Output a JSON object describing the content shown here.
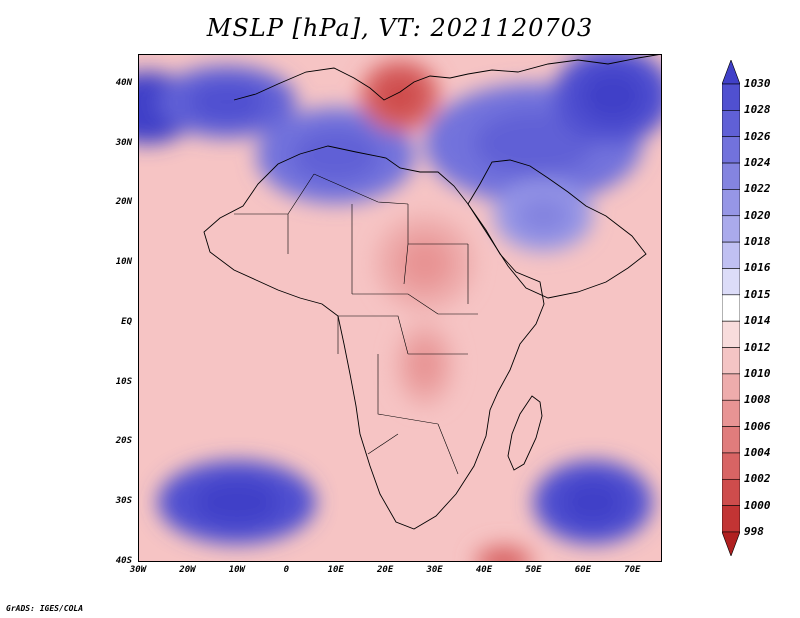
{
  "title": "MSLP [hPa], VT: 2021120703",
  "credit": "GrADS: IGES/COLA",
  "map": {
    "lon_range": [
      -30,
      76
    ],
    "lat_range": [
      -40,
      45
    ],
    "y_ticks": [
      {
        "lat": 40,
        "label": "40N"
      },
      {
        "lat": 30,
        "label": "30N"
      },
      {
        "lat": 20,
        "label": "20N"
      },
      {
        "lat": 10,
        "label": "10N"
      },
      {
        "lat": 0,
        "label": "EQ"
      },
      {
        "lat": -10,
        "label": "10S"
      },
      {
        "lat": -20,
        "label": "20S"
      },
      {
        "lat": -30,
        "label": "30S"
      },
      {
        "lat": -40,
        "label": "40S"
      }
    ],
    "x_ticks": [
      {
        "lon": -30,
        "label": "30W"
      },
      {
        "lon": -20,
        "label": "20W"
      },
      {
        "lon": -10,
        "label": "10W"
      },
      {
        "lon": 0,
        "label": "0"
      },
      {
        "lon": 10,
        "label": "10E"
      },
      {
        "lon": 20,
        "label": "20E"
      },
      {
        "lon": 30,
        "label": "30E"
      },
      {
        "lon": 40,
        "label": "40E"
      },
      {
        "lon": 50,
        "label": "50E"
      },
      {
        "lon": 60,
        "label": "60E"
      },
      {
        "lon": 70,
        "label": "70E"
      }
    ],
    "pressure_features": [
      {
        "kind": "high",
        "lon": -28,
        "lat": 36,
        "hPa": 1030,
        "r_lon": 10,
        "r_lat": 6
      },
      {
        "kind": "high",
        "lon": -12,
        "lat": 37,
        "hPa": 1026,
        "r_lon": 14,
        "r_lat": 6
      },
      {
        "kind": "high",
        "lon": 10,
        "lat": 28,
        "hPa": 1024,
        "r_lon": 16,
        "r_lat": 8
      },
      {
        "kind": "high",
        "lon": 50,
        "lat": 30,
        "hPa": 1024,
        "r_lon": 22,
        "r_lat": 10
      },
      {
        "kind": "high",
        "lon": 66,
        "lat": 38,
        "hPa": 1028,
        "r_lon": 12,
        "r_lat": 8
      },
      {
        "kind": "high",
        "lon": 52,
        "lat": 18,
        "hPa": 1020,
        "r_lon": 10,
        "r_lat": 6
      },
      {
        "kind": "high",
        "lon": -10,
        "lat": -30,
        "hPa": 1028,
        "r_lon": 16,
        "r_lat": 7
      },
      {
        "kind": "high",
        "lon": 62,
        "lat": -30,
        "hPa": 1028,
        "r_lon": 12,
        "r_lat": 7
      },
      {
        "kind": "low",
        "lon": 23,
        "lat": 38,
        "hPa": 1002,
        "r_lon": 8,
        "r_lat": 6
      },
      {
        "kind": "low",
        "lon": 44,
        "lat": -40,
        "hPa": 1004,
        "r_lon": 6,
        "r_lat": 3
      },
      {
        "kind": "low",
        "lon": 28,
        "lat": 10,
        "hPa": 1008,
        "r_lon": 10,
        "r_lat": 8
      },
      {
        "kind": "low",
        "lon": 28,
        "lat": -7,
        "hPa": 1008,
        "r_lon": 6,
        "r_lat": 7
      }
    ]
  },
  "colorbar": {
    "levels": [
      "1030",
      "1028",
      "1026",
      "1024",
      "1022",
      "1020",
      "1018",
      "1016",
      "1015",
      "1014",
      "1012",
      "1010",
      "1008",
      "1006",
      "1004",
      "1002",
      "1000",
      "998"
    ],
    "colors": [
      "#4040c8",
      "#5050d0",
      "#6060d6",
      "#7272dc",
      "#8484e0",
      "#9696e6",
      "#aaaaec",
      "#c0c0f2",
      "#dcdcf8",
      "#ffffff",
      "#f8dcdc",
      "#f4c4c4",
      "#eeacac",
      "#e89494",
      "#e07c7c",
      "#d86464",
      "#ce4c4c",
      "#c23434",
      "#b02020"
    ]
  },
  "styles": {
    "coast_color": "#000000",
    "default_land_color": "#f6c2c2"
  }
}
